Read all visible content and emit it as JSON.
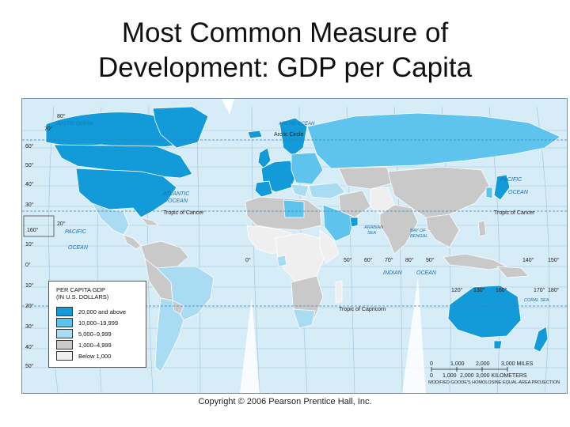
{
  "title": {
    "line1": "Most Common Measure of",
    "line2": "Development: GDP per Capita"
  },
  "map": {
    "ocean_labels": {
      "arctic_ocean_west": "ARCTIC OCEAN",
      "arctic_ocean_east": "ARCTIC OCEAN",
      "atlantic": "ATLANTIC",
      "atlantic_2": "OCEAN",
      "pacific_west": "PACIFIC",
      "pacific_west_2": "OCEAN",
      "pacific_east": "PACIFIC",
      "pacific_east_2": "OCEAN",
      "indian": "INDIAN",
      "indian_2": "OCEAN",
      "arabian_sea": "ARABIAN",
      "arabian_sea_2": "SEA",
      "bay_of_bengal": "BAY OF",
      "bay_of_bengal_2": "BENGAL",
      "coral_sea": "CORAL SEA"
    },
    "line_labels": {
      "arctic_circle": "Arctic Circle",
      "tropic_cancer_west": "Tropic of Cancer",
      "tropic_cancer_east": "Tropic of Cancer",
      "tropic_capricorn": "Tropic of Capricorn"
    },
    "latitude_ticks": [
      "80°",
      "70°",
      "60°",
      "50°",
      "40°",
      "30°",
      "20°",
      "10°",
      "0°",
      "10°",
      "20°",
      "30°",
      "40°",
      "50°"
    ],
    "longitude_ticks": [
      "0°",
      "50°",
      "60°",
      "70°",
      "80°",
      "90°",
      "140°",
      "150°",
      "160°",
      "170°",
      "180°",
      "120°",
      "130°",
      "160°"
    ],
    "colors": {
      "ocean": "#d6ecf7",
      "graticule": "#9cc3dc",
      "border": "#ffffff",
      "tier1": "#129bd8",
      "tier2": "#5ec4ee",
      "tier3": "#a9dbf2",
      "tier4": "#c9c9c9",
      "tier5": "#efefef"
    }
  },
  "legend": {
    "title_line1": "PER CAPITA GDP",
    "title_line2": "(IN U.S. DOLLARS)",
    "items": [
      {
        "label": "20,000 and above",
        "color": "#129bd8"
      },
      {
        "label": "10,000–19,999",
        "color": "#5ec4ee"
      },
      {
        "label": "5,000–9,999",
        "color": "#a9dbf2"
      },
      {
        "label": "1,000–4,999",
        "color": "#c9c9c9"
      },
      {
        "label": "Below 1,000",
        "color": "#efefef"
      }
    ]
  },
  "scale": {
    "miles_ticks": [
      "0",
      "1,000",
      "2,000",
      "3,000 MILES"
    ],
    "km_ticks": [
      "0",
      "1,000",
      "2,000",
      "3,000 KILOMETERS"
    ],
    "projection": "MODIFIED GOODE'S HOMOLOSINE EQUAL-AREA PROJECTION"
  },
  "copyright": "Copyright © 2006 Pearson Prentice Hall, Inc."
}
